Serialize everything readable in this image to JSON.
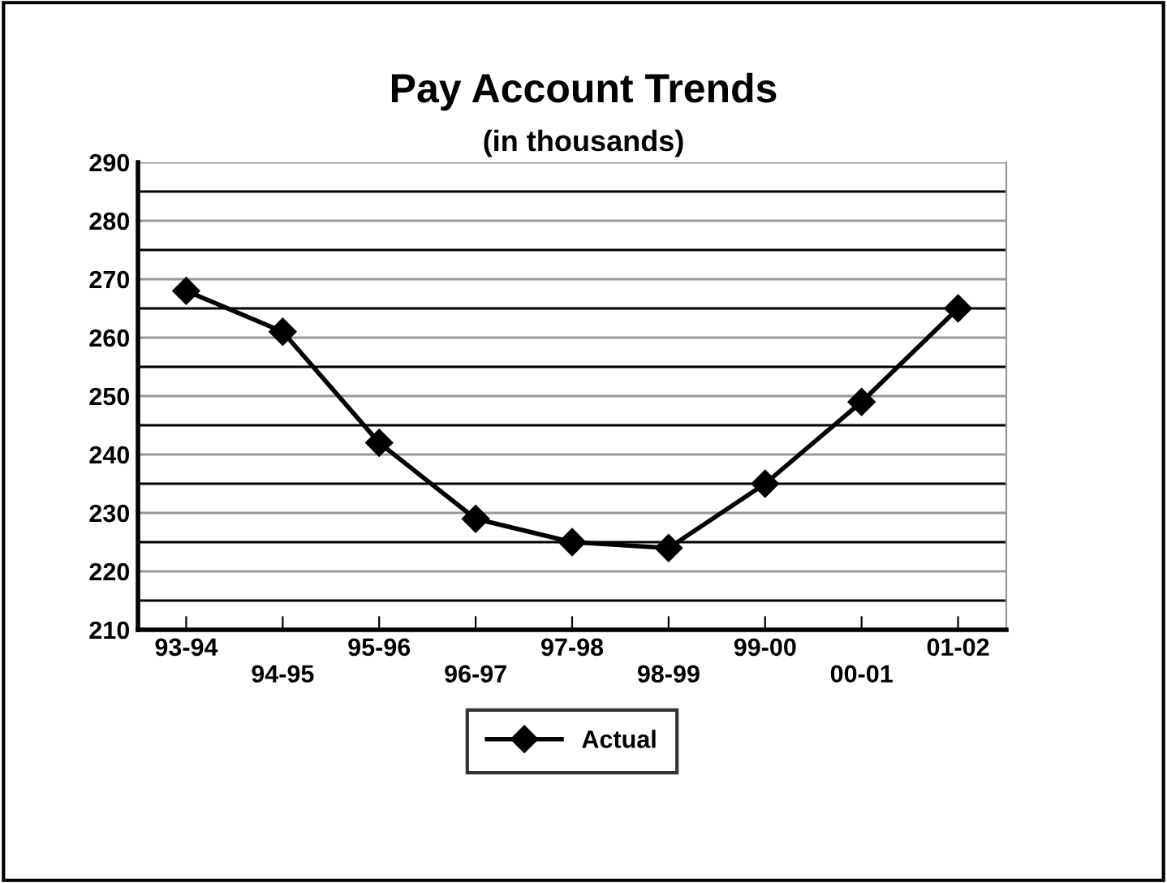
{
  "chart_data": {
    "type": "line",
    "title": "Pay Account Trends",
    "subtitle": "(in thousands)",
    "categories": [
      "93-94",
      "94-95",
      "95-96",
      "96-97",
      "97-98",
      "98-99",
      "99-00",
      "00-01",
      "01-02"
    ],
    "series": [
      {
        "name": "Actual",
        "color": "#000000",
        "values": [
          268,
          261,
          242,
          229,
          225,
          224,
          235,
          249,
          265
        ]
      }
    ],
    "ylim": [
      210,
      290
    ],
    "yticks": [
      210,
      220,
      230,
      240,
      250,
      260,
      270,
      280,
      290
    ],
    "grid": true,
    "legend": "bottom",
    "marker": "diamond",
    "line_style": "solid"
  }
}
